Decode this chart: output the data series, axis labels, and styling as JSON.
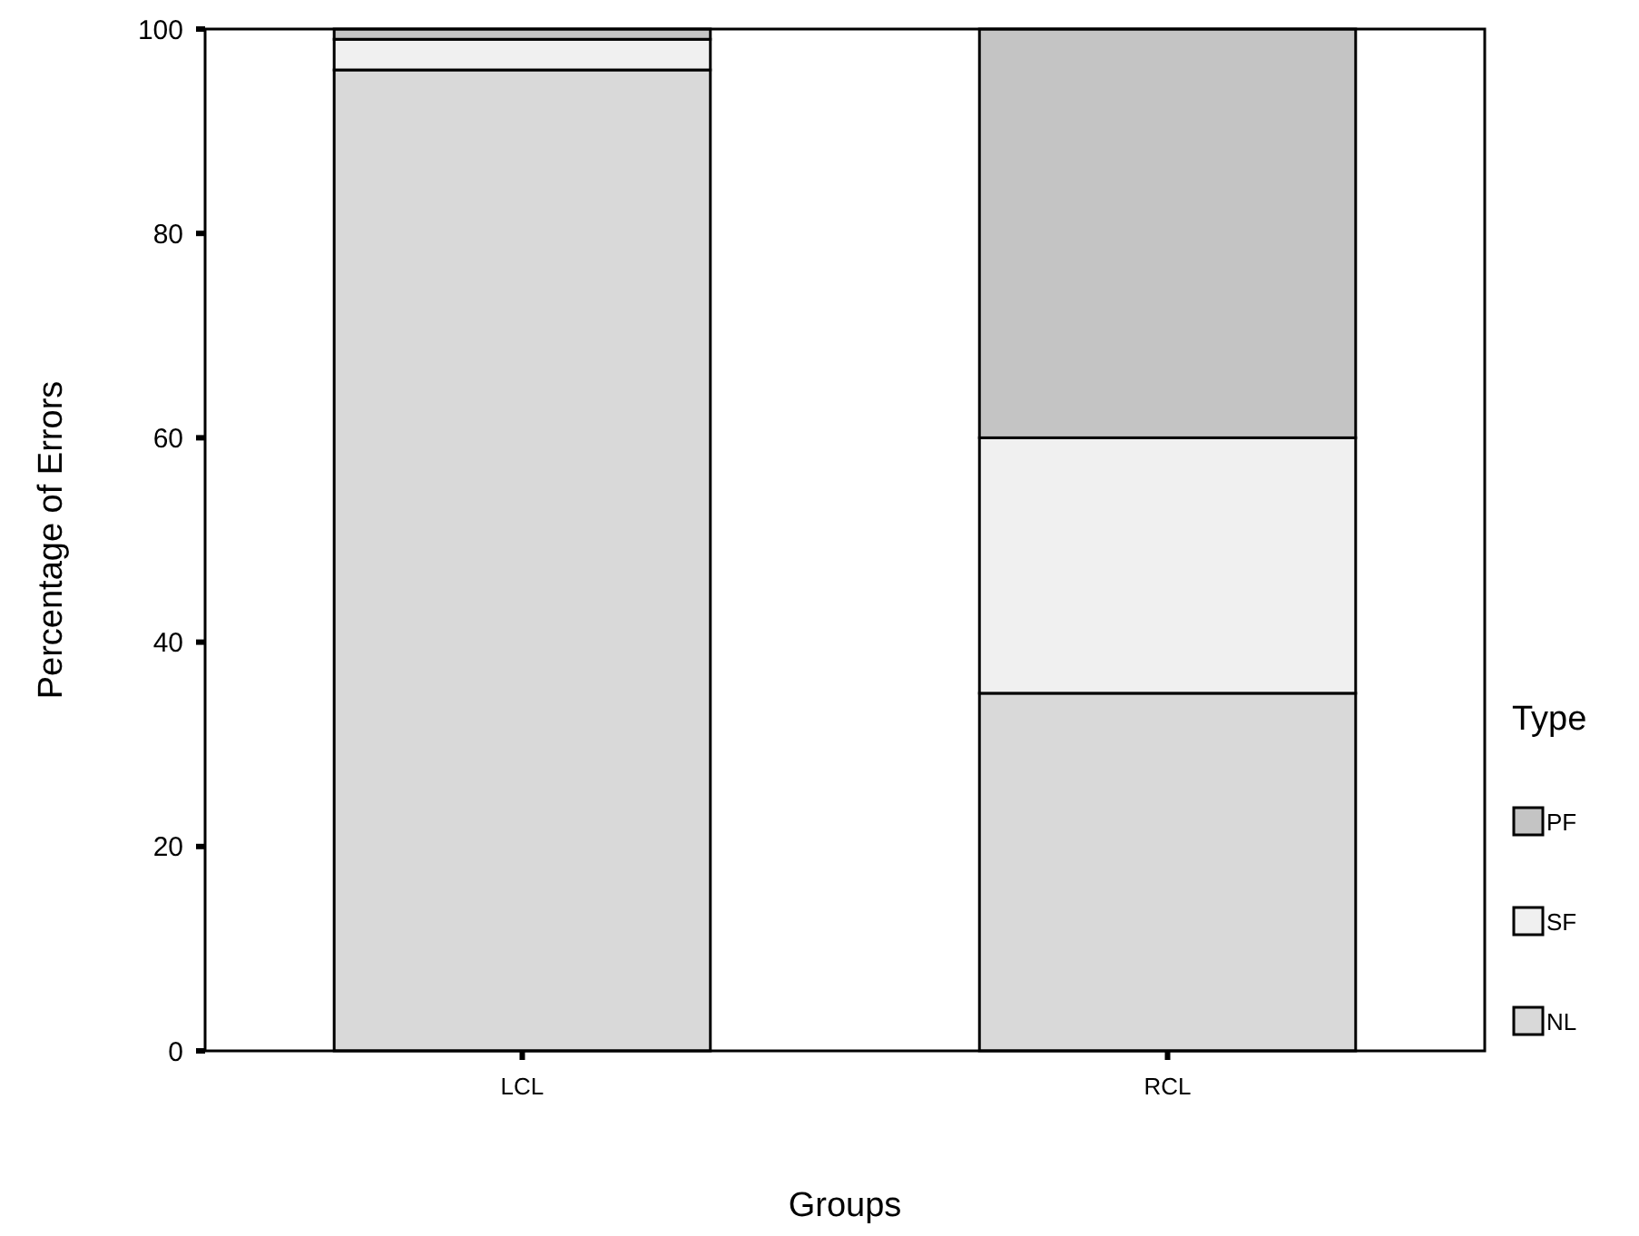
{
  "chart_data": {
    "type": "bar",
    "stacked": true,
    "xlabel": "Groups",
    "ylabel": "Percentage of Errors",
    "legend_title": "Type",
    "categories": [
      "LCL",
      "RCL"
    ],
    "series": [
      {
        "name": "NL",
        "color": "#d9d9d9",
        "values": [
          96,
          35
        ]
      },
      {
        "name": "SF",
        "color": "#f0f0f0",
        "values": [
          3,
          25
        ]
      },
      {
        "name": "PF",
        "color": "#c4c4c4",
        "values": [
          1,
          40
        ]
      }
    ],
    "ylim": [
      0,
      100
    ],
    "yticks": [
      0,
      20,
      40,
      60,
      80,
      100
    ],
    "legend": "right",
    "grid": false
  }
}
